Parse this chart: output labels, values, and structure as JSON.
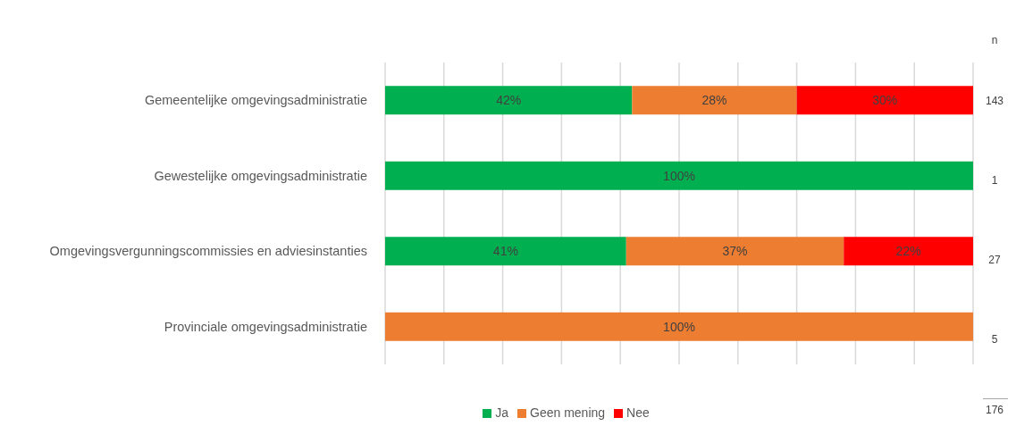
{
  "chart_data": {
    "type": "bar",
    "orientation": "horizontal",
    "stacked": true,
    "categories": [
      "Gemeentelijke omgevingsadministratie",
      "Gewestelijke omgevingsadministratie",
      "Omgevingsvergunningscommissies en adviesinstanties",
      "Provinciale omgevingsadministratie"
    ],
    "series": [
      {
        "name": "Ja",
        "color": "#00b050",
        "values": [
          42,
          100,
          41,
          null
        ],
        "value_labels": [
          "42%",
          "100%",
          "41%",
          null
        ]
      },
      {
        "name": "Geen mening",
        "color": "#ed7d31",
        "values": [
          28,
          null,
          37,
          100
        ],
        "value_labels": [
          "28%",
          null,
          "37%",
          "100%"
        ]
      },
      {
        "name": "Nee",
        "color": "#ff0000",
        "values": [
          30,
          null,
          22,
          null
        ],
        "value_labels": [
          "30%",
          null,
          "22%",
          null
        ]
      }
    ],
    "xlim": [
      0,
      100
    ],
    "xticks": [
      {
        "value": 0,
        "label": null
      },
      {
        "value": 10,
        "label": null
      },
      {
        "value": 20,
        "label": null
      },
      {
        "value": 30,
        "label": null
      },
      {
        "value": 40,
        "label": null
      },
      {
        "value": 50,
        "label": null
      },
      {
        "value": 60,
        "label": null
      },
      {
        "value": 70,
        "label": null
      },
      {
        "value": 80,
        "label": null
      },
      {
        "value": 90,
        "label": null
      },
      {
        "value": 100,
        "label": null
      }
    ],
    "grid": "x",
    "tick_labels": "y",
    "legend": "bottom",
    "annotations": [
      "n",
      "143",
      "1",
      "27",
      "5",
      "176"
    ]
  }
}
